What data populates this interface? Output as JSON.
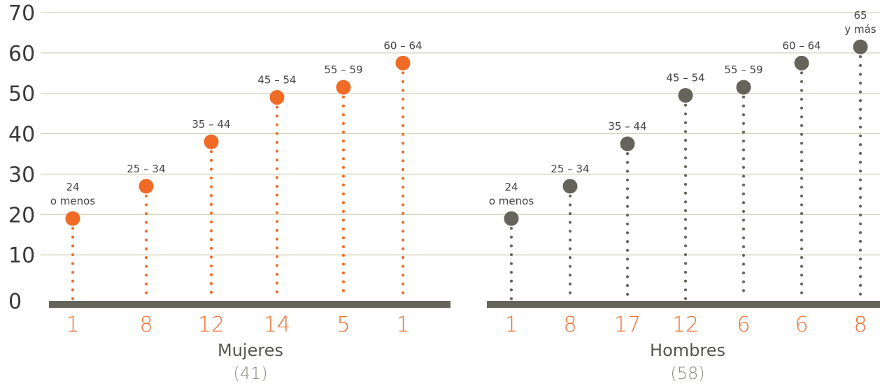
{
  "chart_data": {
    "type": "scatter",
    "ylim": [
      0,
      70
    ],
    "yticks": [
      "0",
      "10",
      "20",
      "30",
      "40",
      "50",
      "60",
      "70"
    ],
    "grid": true,
    "colors": {
      "mujeres": "#ef6b26",
      "hombres": "#65645a",
      "count": "#ef7030",
      "baseline": "#65645a",
      "grid": "#c9c9a8"
    },
    "panels": [
      {
        "key": "mujeres",
        "title": "Mujeres",
        "total": "(41)",
        "points": [
          {
            "label": [
              "24",
              "o menos"
            ],
            "value": 19,
            "count": "1"
          },
          {
            "label": [
              "25 – 34"
            ],
            "value": 27,
            "count": "8"
          },
          {
            "label": [
              "35 – 44"
            ],
            "value": 38,
            "count": "12"
          },
          {
            "label": [
              "45 – 54"
            ],
            "value": 49,
            "count": "14"
          },
          {
            "label": [
              "55 – 59"
            ],
            "value": 51.5,
            "count": "5"
          },
          {
            "label": [
              "60 – 64"
            ],
            "value": 57.5,
            "count": "1"
          }
        ]
      },
      {
        "key": "hombres",
        "title": "Hombres",
        "total": "(58)",
        "points": [
          {
            "label": [
              "24",
              "o menos"
            ],
            "value": 19,
            "count": "1"
          },
          {
            "label": [
              "25 – 34"
            ],
            "value": 27,
            "count": "8"
          },
          {
            "label": [
              "35 – 44"
            ],
            "value": 37.5,
            "count": "17"
          },
          {
            "label": [
              "45 – 54"
            ],
            "value": 49.5,
            "count": "12"
          },
          {
            "label": [
              "55 – 59"
            ],
            "value": 51.5,
            "count": "6"
          },
          {
            "label": [
              "60 – 64"
            ],
            "value": 57.5,
            "count": "6"
          },
          {
            "label": [
              "65",
              "y más"
            ],
            "value": 61.5,
            "count": "8"
          }
        ]
      }
    ]
  }
}
